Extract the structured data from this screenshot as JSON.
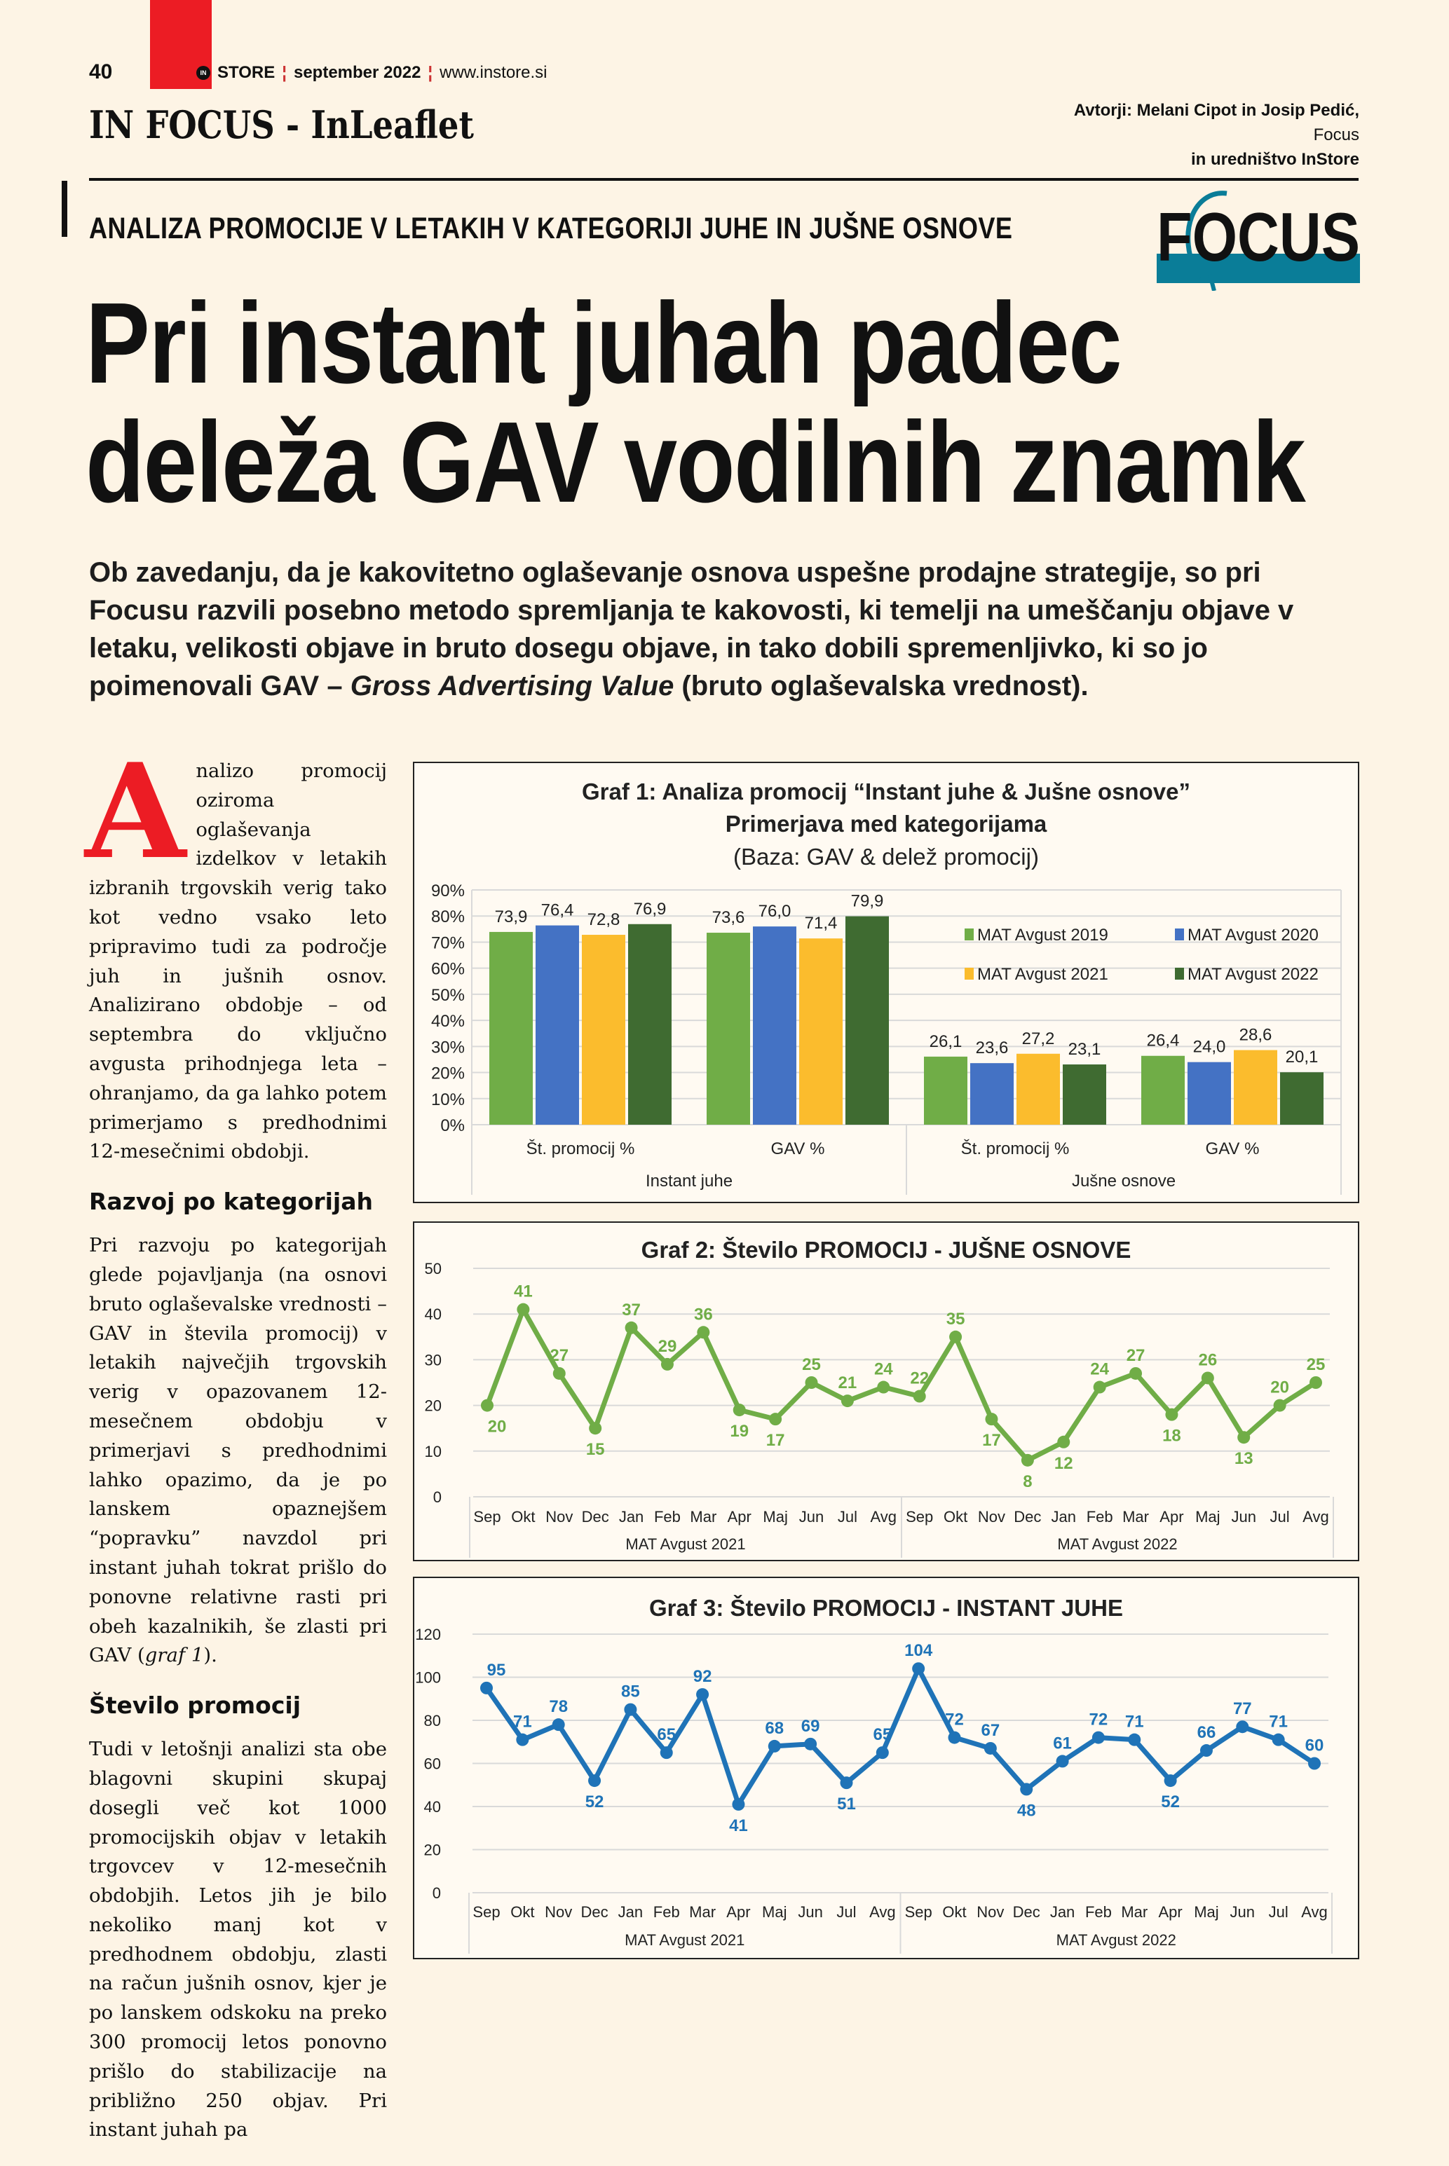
{
  "header": {
    "page_number": "40",
    "brand": "STORE",
    "brand_badge": "IN",
    "issue": "september 2022",
    "url": "www.instore.si",
    "section": "IN FOCUS - InLeaflet",
    "authors_line1": "Avtorji: Melani Cipot in Josip Pedić,",
    "authors_line2": "Focus",
    "authors_line3": "in uredništvo InStore",
    "logo_text": "FOCUS"
  },
  "article": {
    "kicker": "ANALIZA PROMOCIJE V LETAKIH V KATEGORIJI JUHE IN JUŠNE OSNOVE",
    "headline_line1": "Pri instant juhah padec",
    "headline_line2": "deleža GAV vodilnih znamk",
    "intro_a": "Ob zavedanju, da je kakovitetno oglaševanje osnova uspešne prodajne strategije, so pri Focusu razvili posebno metodo spremljanja te kakovosti, ki temelji na umeščanju objave v letaku, velikosti objave in bruto dosegu objave, in tako dobili spremenljivko, ki so jo poimenovali GAV – ",
    "intro_italic": "Gross Advertising Value",
    "intro_b": " (bruto oglaševalska vrednost).",
    "dropcap": "A",
    "para1": "nalizo promocij oziroma oglaševanja izdelkov v letakih izbranih trgovskih verig tako kot vedno vsako leto pripravimo tudi za področje juh in jušnih osnov. Analizirano obdobje – od septembra do vključno avgusta prihodnjega leta – ohranjamo, da ga lahko potem primerjamo s predhodnimi 12-mesečnimi obdobji.",
    "heading2": "Razvoj po kategorijah",
    "para2": "Pri razvoju po kategorijah glede pojavljanja (na osnovi bruto oglaševalske vrednosti – GAV in števila promocij) v letakih največjih trgovskih verig v opazovanem 12-mesečnem obdobju v primerjavi s predhodnimi lahko opazimo, da je po lanskem opaznejšem “popravku” navzdol pri instant juhah tokrat prišlo do ponovne relativne rasti pri obeh kazalnikih, še zlasti pri GAV (",
    "para2_italic": "graf 1",
    "para2_end": ").",
    "heading3": "Število promocij",
    "para3": "Tudi v letošnji analizi sta obe blagovni skupini skupaj dosegli več kot 1000 promocijskih objav v letakih trgovcev v 12-mesečnih obdobjih. Letos jih je bilo nekoliko manj kot v predhodnem obdobju, zlasti na račun jušnih osnov, kjer je po lanskem odskoku na preko 300 promocij letos ponovno prišlo do stabilizacije na približno 250 objav. Pri instant juhah pa"
  },
  "chart_data": [
    {
      "type": "bar",
      "title": "Graf 1: Analiza promocij “Instant juhe & Jušne osnove”",
      "subtitle": "Primerjava  med kategorijama",
      "subtitle2": "(Baza: GAV & delež promocij)",
      "categories": [
        "Št. promocij %",
        "GAV %",
        "Št. promocij %",
        "GAV %"
      ],
      "groups": [
        "Instant juhe",
        "Jušne osnove"
      ],
      "yticks": [
        "0%",
        "10%",
        "20%",
        "30%",
        "40%",
        "50%",
        "60%",
        "70%",
        "80%",
        "90%"
      ],
      "ylim": [
        0,
        90
      ],
      "legend_position": "right",
      "series": [
        {
          "name": "MAT Avgust 2019",
          "color": "#70ad47",
          "values": [
            73.9,
            73.6,
            26.1,
            26.4
          ],
          "labels": [
            "73,9",
            "73,6",
            "26,1",
            "26,4"
          ]
        },
        {
          "name": "MAT Avgust 2020",
          "color": "#4472c4",
          "values": [
            76.4,
            76.0,
            23.6,
            24.0
          ],
          "labels": [
            "76,4",
            "76,0",
            "23,6",
            "24,0"
          ]
        },
        {
          "name": "MAT Avgust 2021",
          "color": "#fbbc2d",
          "values": [
            72.8,
            71.4,
            27.2,
            28.6
          ],
          "labels": [
            "72,8",
            "71,4",
            "27,2",
            "28,6"
          ]
        },
        {
          "name": "MAT Avgust 2022",
          "color": "#3f6b31",
          "values": [
            76.9,
            79.9,
            23.1,
            20.1
          ],
          "labels": [
            "76,9",
            "79,9",
            "23,1",
            "20,1"
          ]
        }
      ]
    },
    {
      "type": "line",
      "title": "Graf 2: Število PROMOCIJ - JUŠNE OSNOVE",
      "x": [
        "Sep",
        "Okt",
        "Nov",
        "Dec",
        "Jan",
        "Feb",
        "Mar",
        "Apr",
        "Maj",
        "Jun",
        "Jul",
        "Avg",
        "Sep",
        "Okt",
        "Nov",
        "Dec",
        "Jan",
        "Feb",
        "Mar",
        "Apr",
        "Maj",
        "Jun",
        "Jul",
        "Avg"
      ],
      "groups": [
        "MAT Avgust 2021",
        "MAT Avgust 2022"
      ],
      "yticks": [
        "0",
        "10",
        "20",
        "30",
        "40",
        "50"
      ],
      "ylim": [
        0,
        50
      ],
      "color": "#70ad47",
      "values": [
        20,
        41,
        27,
        15,
        37,
        29,
        36,
        19,
        17,
        25,
        21,
        24,
        22,
        35,
        17,
        8,
        12,
        24,
        27,
        18,
        26,
        13,
        20,
        25
      ]
    },
    {
      "type": "line",
      "title": "Graf 3: Število PROMOCIJ - INSTANT JUHE",
      "x": [
        "Sep",
        "Okt",
        "Nov",
        "Dec",
        "Jan",
        "Feb",
        "Mar",
        "Apr",
        "Maj",
        "Jun",
        "Jul",
        "Avg",
        "Sep",
        "Okt",
        "Nov",
        "Dec",
        "Jan",
        "Feb",
        "Mar",
        "Apr",
        "Maj",
        "Jun",
        "Jul",
        "Avg"
      ],
      "groups": [
        "MAT Avgust 2021",
        "MAT Avgust 2022"
      ],
      "yticks": [
        "0",
        "20",
        "40",
        "60",
        "80",
        "100",
        "120"
      ],
      "ylim": [
        0,
        120
      ],
      "color": "#1f73b7",
      "values": [
        95,
        71,
        78,
        52,
        85,
        65,
        92,
        41,
        68,
        69,
        51,
        65,
        104,
        72,
        67,
        48,
        61,
        72,
        71,
        52,
        66,
        77,
        71,
        60
      ]
    }
  ]
}
